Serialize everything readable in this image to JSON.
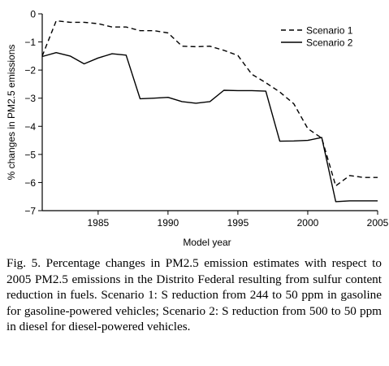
{
  "chart_data": {
    "type": "line",
    "ylabel": "% changes in PM2.5 emissions",
    "xlabel": "Model year",
    "xlim": [
      1981,
      2005
    ],
    "ylim": [
      -7,
      0
    ],
    "x_ticks": [
      1985,
      1990,
      1995,
      2000,
      2005
    ],
    "y_ticks": [
      0,
      -1,
      -2,
      -3,
      -4,
      -5,
      -6,
      -7
    ],
    "x_tick_labels": [
      "1985",
      "1990",
      "1995",
      "2000",
      "2005"
    ],
    "y_tick_labels": [
      "0",
      "−1",
      "−2",
      "−3",
      "−4",
      "−5",
      "−6",
      "−7"
    ],
    "legend_position": "top-right",
    "grid": false,
    "series": [
      {
        "name": "Scenario 1",
        "style": "dashed",
        "x": [
          1981,
          1982,
          1983,
          1984,
          1985,
          1986,
          1987,
          1988,
          1989,
          1990,
          1991,
          1992,
          1993,
          1994,
          1995,
          1996,
          1997,
          1998,
          1999,
          2000,
          2001,
          2002,
          2003,
          2004,
          2005
        ],
        "y": [
          -1.5,
          -0.25,
          -0.3,
          -0.3,
          -0.35,
          -0.47,
          -0.47,
          -0.6,
          -0.6,
          -0.68,
          -1.15,
          -1.17,
          -1.15,
          -1.3,
          -1.48,
          -2.15,
          -2.45,
          -2.78,
          -3.2,
          -4.08,
          -4.42,
          -6.12,
          -5.75,
          -5.82,
          -5.82
        ]
      },
      {
        "name": "Scenario 2",
        "style": "solid",
        "x": [
          1981,
          1982,
          1983,
          1984,
          1985,
          1986,
          1987,
          1988,
          1989,
          1990,
          1991,
          1992,
          1993,
          1994,
          1995,
          1996,
          1997,
          1998,
          1999,
          2000,
          2001,
          2002,
          2003,
          2004,
          2005
        ],
        "y": [
          -1.52,
          -1.38,
          -1.5,
          -1.78,
          -1.57,
          -1.42,
          -1.47,
          -3.02,
          -3.0,
          -2.97,
          -3.12,
          -3.18,
          -3.12,
          -2.72,
          -2.73,
          -2.73,
          -2.75,
          -4.53,
          -4.52,
          -4.5,
          -4.4,
          -6.68,
          -6.65,
          -6.65,
          -6.65
        ]
      }
    ]
  },
  "caption": {
    "text": "Fig. 5. Percentage changes in PM2.5 emission estimates with respect to 2005 PM2.5 emissions in the Distrito Federal resulting from sulfur content reduction in fuels. Scenario 1: S reduction from 244 to 50 ppm in gasoline for gasoline-powered vehicles; Scenario 2: S reduction from 500 to 50 ppm in diesel for diesel-powered vehicles."
  }
}
